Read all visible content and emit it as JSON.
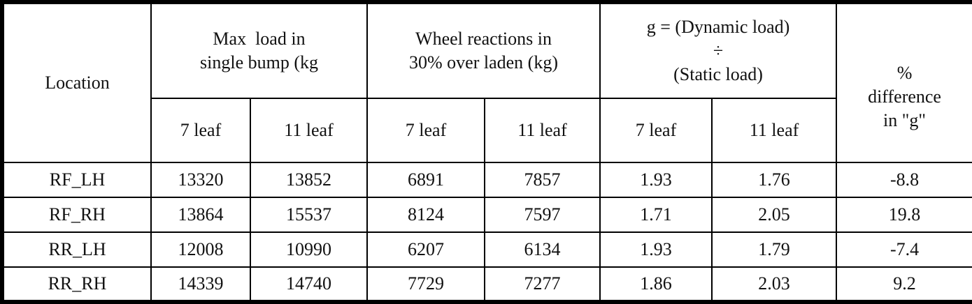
{
  "table": {
    "headers": [
      [
        "Location"
      ],
      [
        "Max  load in",
        "single bump (kg"
      ],
      [
        "Wheel reactions in",
        "30% over laden (kg)"
      ],
      [
        "g = (Dynamic load)",
        "÷",
        "(Static load)"
      ],
      [
        "%",
        "difference",
        "in \"g\""
      ]
    ],
    "subheaders": [
      "7 leaf",
      "11 leaf",
      "7 leaf",
      "11 leaf",
      "7 leaf",
      "11 leaf"
    ],
    "rows": [
      [
        "RF_LH",
        "13320",
        "13852",
        "6891",
        "7857",
        "1.93",
        "1.76",
        "-8.8"
      ],
      [
        "RF_RH",
        "13864",
        "15537",
        "8124",
        "7597",
        "1.71",
        "2.05",
        "19.8"
      ],
      [
        "RR_LH",
        "12008",
        "10990",
        "6207",
        "6134",
        "1.93",
        "1.79",
        "-7.4"
      ],
      [
        "RR_RH",
        "14339",
        "14740",
        "7729",
        "7277",
        "1.86",
        "2.03",
        "9.2"
      ]
    ]
  }
}
